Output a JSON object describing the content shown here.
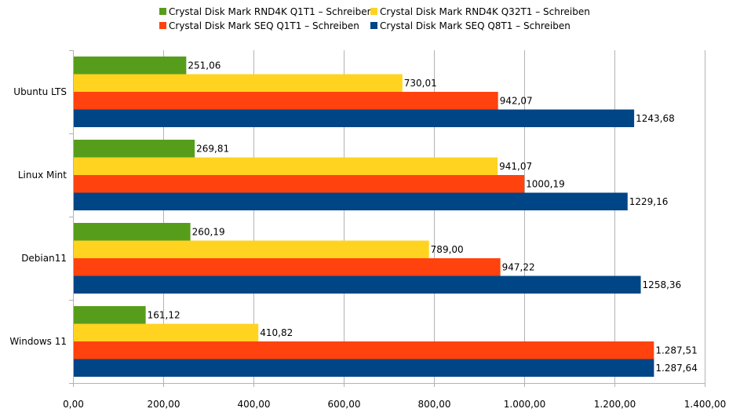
{
  "chart_data": {
    "type": "bar",
    "orientation": "horizontal",
    "categories": [
      "Ubuntu LTS",
      "Linux Mint",
      "Debian11",
      "Windows 11"
    ],
    "series": [
      {
        "name": "Crystal Disk Mark RND4K Q1T1 – Schreiben",
        "color": "#579d1c",
        "values": [
          251.06,
          269.81,
          260.19,
          161.12
        ],
        "labels": [
          "251,06",
          "269,81",
          "260,19",
          "161,12"
        ]
      },
      {
        "name": "Crystal Disk Mark RND4K Q32T1 – Schreiben",
        "color": "#ffd320",
        "values": [
          730.01,
          941.07,
          789.0,
          410.82
        ],
        "labels": [
          "730,01",
          "941,07",
          "789,00",
          "410,82"
        ]
      },
      {
        "name": "Crystal Disk Mark SEQ Q1T1 – Schreiben",
        "color": "#ff420e",
        "values": [
          942.07,
          1000.19,
          947.22,
          1287.51
        ],
        "labels": [
          "942,07",
          "1000,19",
          "947,22",
          "1.287,51"
        ]
      },
      {
        "name": "Crystal Disk Mark SEQ Q8T1 – Schreiben",
        "color": "#004586",
        "values": [
          1243.68,
          1229.16,
          1258.36,
          1287.64
        ],
        "labels": [
          "1243,68",
          "1229,16",
          "1258,36",
          "1.287,64"
        ]
      }
    ],
    "xlim": [
      0,
      1400
    ],
    "xticks": [
      0,
      200,
      400,
      600,
      800,
      1000,
      1200,
      1400
    ],
    "xtick_labels": [
      "0,00",
      "200,00",
      "400,00",
      "600,00",
      "800,00",
      "1.000,00",
      "1.200,00",
      "1.400,00"
    ],
    "grid": true,
    "legend_position": "top"
  }
}
